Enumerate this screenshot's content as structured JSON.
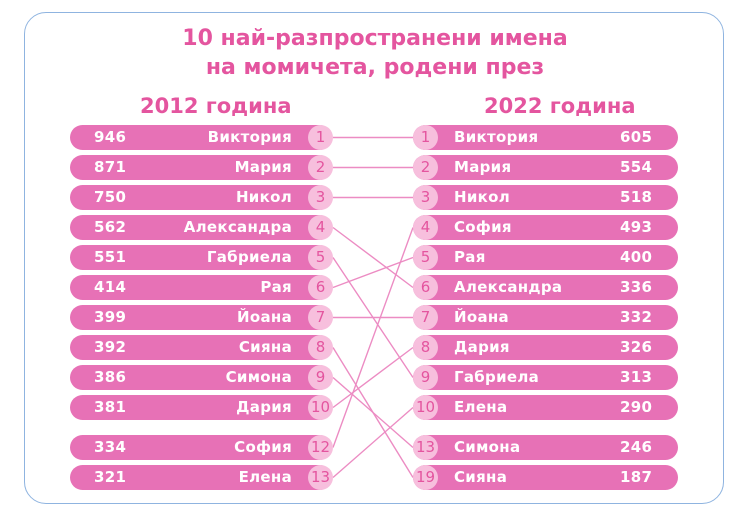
{
  "title": {
    "line1": "10 най-разпространени имена",
    "line2": "на момичета, родени през"
  },
  "colors": {
    "accent": "#e4559f",
    "bar": "#e771b6",
    "badge": "#f7bfdd"
  },
  "chart_data": {
    "type": "table",
    "title": "10 най-разпространени имена на момичета, родени през",
    "columns": [
      {
        "heading": "2012 година",
        "rows": [
          {
            "rank": "1",
            "name": "Виктория",
            "count": "946"
          },
          {
            "rank": "2",
            "name": "Мария",
            "count": "871"
          },
          {
            "rank": "3",
            "name": "Никол",
            "count": "750"
          },
          {
            "rank": "4",
            "name": "Александра",
            "count": "562"
          },
          {
            "rank": "5",
            "name": "Габриела",
            "count": "551"
          },
          {
            "rank": "6",
            "name": "Рая",
            "count": "414"
          },
          {
            "rank": "7",
            "name": "Йоана",
            "count": "399"
          },
          {
            "rank": "8",
            "name": "Сияна",
            "count": "392"
          },
          {
            "rank": "9",
            "name": "Симона",
            "count": "386"
          },
          {
            "rank": "10",
            "name": "Дария",
            "count": "381"
          },
          {
            "rank": "12",
            "name": "София",
            "count": "334"
          },
          {
            "rank": "13",
            "name": "Елена",
            "count": "321"
          }
        ]
      },
      {
        "heading": "2022 година",
        "rows": [
          {
            "rank": "1",
            "name": "Виктория",
            "count": "605"
          },
          {
            "rank": "2",
            "name": "Мария",
            "count": "554"
          },
          {
            "rank": "3",
            "name": "Никол",
            "count": "518"
          },
          {
            "rank": "4",
            "name": "София",
            "count": "493"
          },
          {
            "rank": "5",
            "name": "Рая",
            "count": "400"
          },
          {
            "rank": "6",
            "name": "Александра",
            "count": "336"
          },
          {
            "rank": "7",
            "name": "Йоана",
            "count": "332"
          },
          {
            "rank": "8",
            "name": "Дария",
            "count": "326"
          },
          {
            "rank": "9",
            "name": "Габриела",
            "count": "313"
          },
          {
            "rank": "10",
            "name": "Елена",
            "count": "290"
          },
          {
            "rank": "13",
            "name": "Симона",
            "count": "246"
          },
          {
            "rank": "19",
            "name": "Сияна",
            "count": "187"
          }
        ]
      }
    ]
  }
}
